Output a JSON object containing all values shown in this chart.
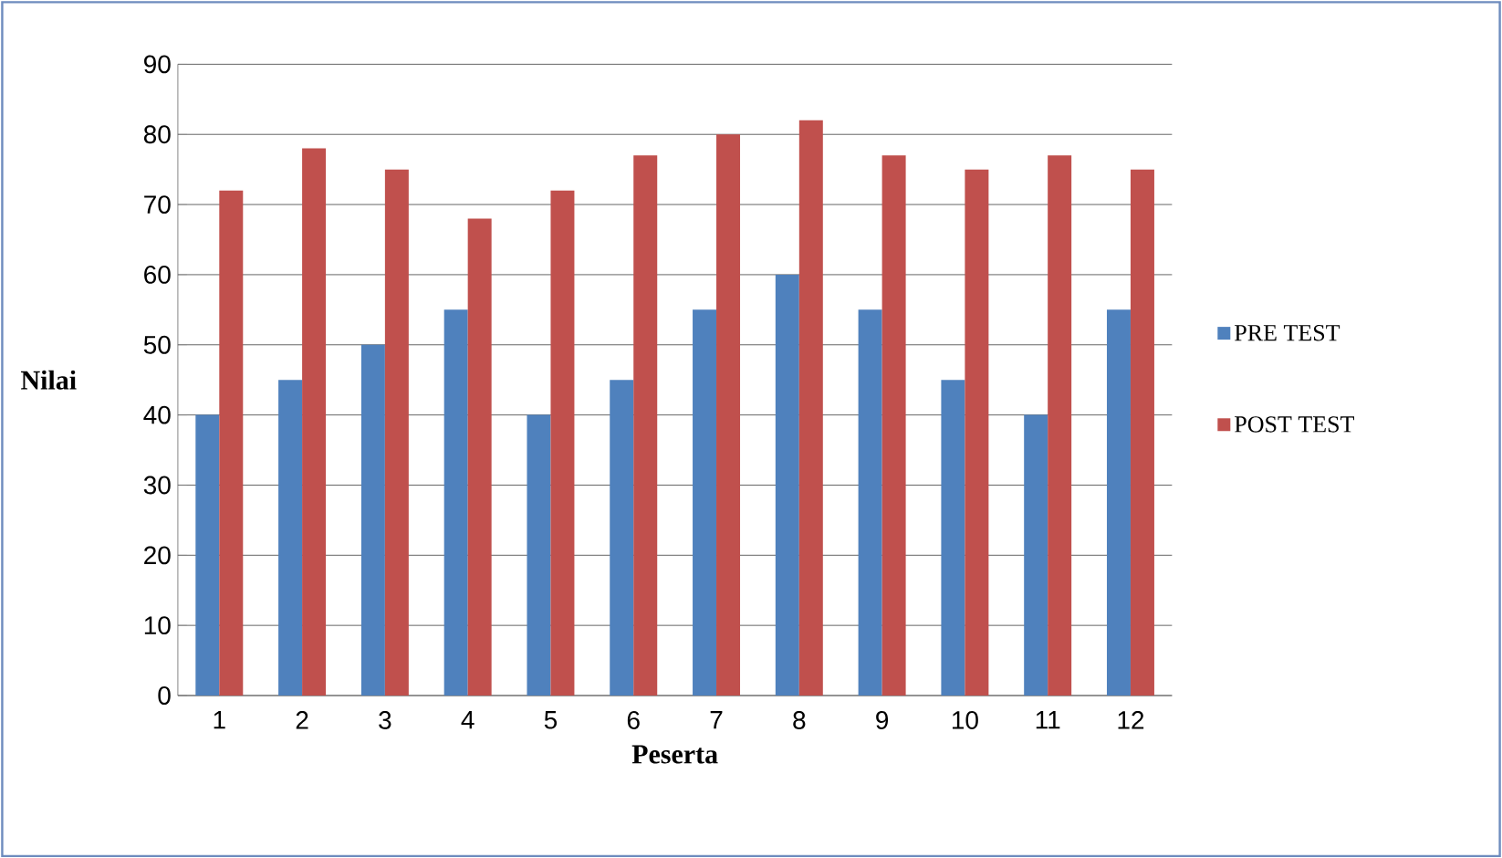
{
  "chart_data": {
    "type": "bar",
    "xlabel": "Peserta",
    "ylabel": "Nilai",
    "categories": [
      "1",
      "2",
      "3",
      "4",
      "5",
      "6",
      "7",
      "8",
      "9",
      "10",
      "11",
      "12"
    ],
    "series": [
      {
        "name": "PRE TEST",
        "color": "#4f81bd",
        "values": [
          40,
          45,
          50,
          55,
          40,
          45,
          55,
          60,
          55,
          45,
          40,
          55
        ]
      },
      {
        "name": "POST TEST",
        "color": "#c0504d",
        "values": [
          72,
          78,
          75,
          68,
          72,
          77,
          80,
          82,
          77,
          75,
          77,
          75
        ]
      }
    ],
    "ylim": [
      0,
      90
    ],
    "yticks": [
      0,
      10,
      20,
      30,
      40,
      50,
      60,
      70,
      80,
      90
    ],
    "grid": "y",
    "legend": "right"
  }
}
